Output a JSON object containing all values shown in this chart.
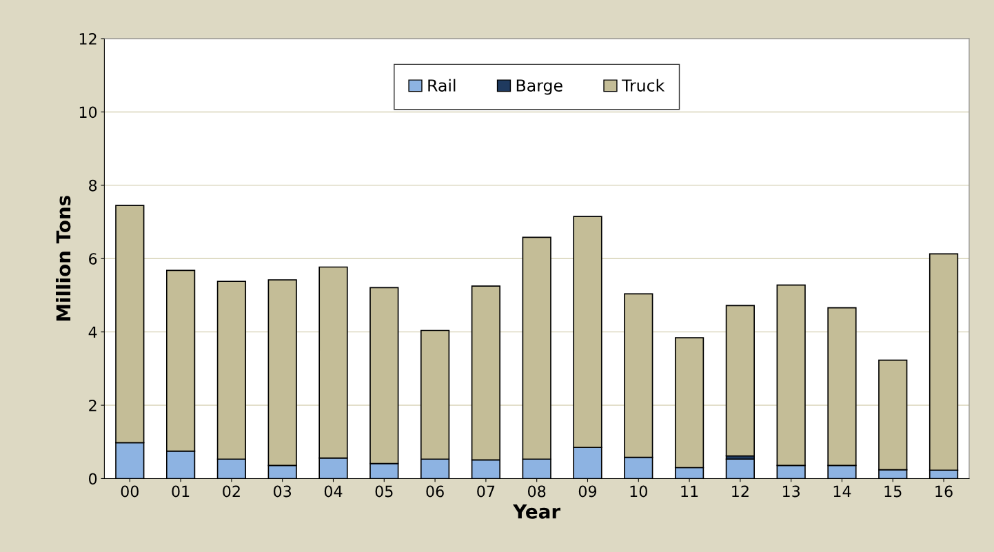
{
  "chart_data": {
    "type": "bar",
    "stacked": true,
    "xlabel": "Year",
    "ylabel": "Million Tons",
    "categories": [
      "00",
      "01",
      "02",
      "03",
      "04",
      "05",
      "06",
      "07",
      "08",
      "09",
      "10",
      "11",
      "12",
      "13",
      "14",
      "15",
      "16"
    ],
    "series": [
      {
        "name": "Rail",
        "color": "#8db3e2",
        "values": [
          0.98,
          0.75,
          0.53,
          0.36,
          0.56,
          0.41,
          0.53,
          0.51,
          0.53,
          0.85,
          0.58,
          0.3,
          0.53,
          0.36,
          0.36,
          0.24,
          0.23
        ]
      },
      {
        "name": "Barge",
        "color": "#1f3a5f",
        "values": [
          null,
          null,
          null,
          null,
          null,
          null,
          null,
          null,
          null,
          null,
          null,
          null,
          0.09,
          null,
          null,
          null,
          null
        ]
      },
      {
        "name": "Truck",
        "color": "#c4bd97",
        "values": [
          6.47,
          4.93,
          4.85,
          5.06,
          5.21,
          4.8,
          3.51,
          4.74,
          6.05,
          6.3,
          4.46,
          3.54,
          4.1,
          4.92,
          4.3,
          2.99,
          5.9
        ]
      }
    ],
    "ylim": [
      0,
      12
    ],
    "yticks": [
      0,
      2,
      4,
      6,
      8,
      10,
      12
    ],
    "grid": "y",
    "legend": "top"
  }
}
